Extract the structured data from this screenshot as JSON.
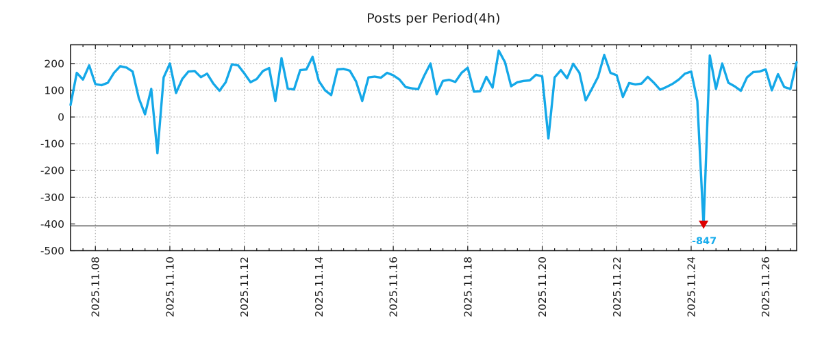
{
  "chart_data": {
    "type": "line",
    "title": "Posts per Period(4h)",
    "x_start": "2025-11-07 08:00",
    "x_step_hours": 4,
    "n_points": 118,
    "values": [
      45,
      165,
      140,
      193,
      123,
      119,
      128,
      165,
      190,
      185,
      170,
      70,
      10,
      105,
      -135,
      148,
      200,
      90,
      142,
      170,
      172,
      149,
      162,
      125,
      98,
      130,
      197,
      193,
      163,
      130,
      142,
      172,
      183,
      60,
      220,
      106,
      103,
      175,
      178,
      225,
      135,
      100,
      82,
      178,
      180,
      173,
      133,
      60,
      148,
      151,
      147,
      165,
      156,
      140,
      112,
      107,
      104,
      155,
      200,
      85,
      135,
      139,
      131,
      165,
      184,
      95,
      96,
      150,
      110,
      248,
      205,
      115,
      130,
      135,
      137,
      158,
      152,
      -80,
      148,
      175,
      145,
      199,
      165,
      62,
      105,
      150,
      232,
      165,
      156,
      75,
      127,
      122,
      125,
      150,
      128,
      102,
      112,
      124,
      140,
      162,
      170,
      60,
      -847,
      230,
      105,
      200,
      128,
      115,
      98,
      148,
      168,
      170,
      178,
      100,
      160,
      112,
      105,
      205
    ],
    "xticks": [
      {
        "index": 4,
        "label": "2025.11.08"
      },
      {
        "index": 16,
        "label": "2025.11.10"
      },
      {
        "index": 28,
        "label": "2025.11.12"
      },
      {
        "index": 40,
        "label": "2025.11.14"
      },
      {
        "index": 52,
        "label": "2025.11.16"
      },
      {
        "index": 64,
        "label": "2025.11.18"
      },
      {
        "index": 76,
        "label": "2025.11.20"
      },
      {
        "index": 88,
        "label": "2025.11.22"
      },
      {
        "index": 100,
        "label": "2025.11.24"
      },
      {
        "index": 112,
        "label": "2025.11.26"
      }
    ],
    "yticks": [
      200,
      100,
      0,
      -100,
      -200,
      -300,
      -400,
      -500
    ],
    "ylim": [
      -500,
      270
    ],
    "grid": true,
    "legend": false,
    "line_color": "#14a8e8",
    "grid_color": "#9a9a9a",
    "axis_color": "#111111",
    "clip_line_value": -407,
    "min_annotation": {
      "index": 102,
      "value": -847,
      "label": "-847",
      "marker": "triangle-down",
      "marker_color": "#dd0000",
      "label_color": "#18acec"
    }
  }
}
